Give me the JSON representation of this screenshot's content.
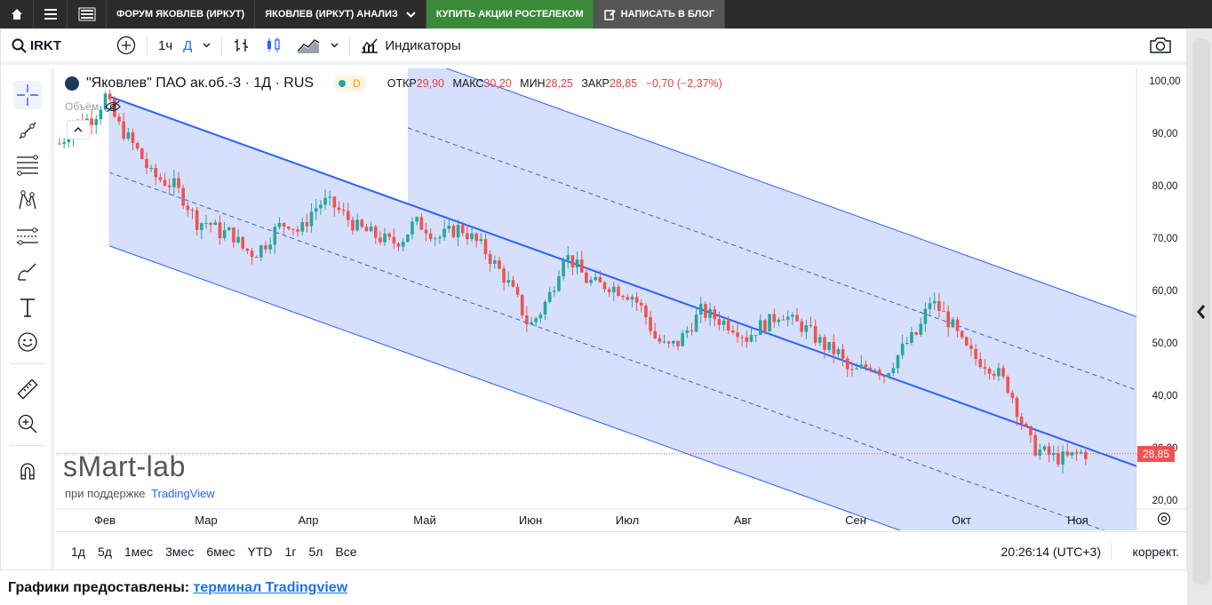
{
  "topnav": {
    "items": [
      {
        "label": "ФОРУМ ЯКОВЛЕВ (ИРКУТ)"
      },
      {
        "label": "ЯКОВЛЕВ (ИРКУТ) АНАЛИЗ"
      },
      {
        "label": "КУПИТЬ АКЦИИ РОСТЕЛЕКОМ"
      },
      {
        "label": "НАПИСАТЬ В БЛОГ"
      }
    ],
    "colors": {
      "bar": "#2b2b2b",
      "green": "#3a8a3a",
      "grey": "#555555"
    }
  },
  "toolbar": {
    "symbol": "IRKT",
    "interval": "1ч",
    "interval_alt": "Д",
    "indicators_label": "Индикаторы"
  },
  "legend": {
    "title": "\"Яковлев\" ПАО ак.об.-3 · 1Д · RUS",
    "badge": "D",
    "volume_label": "Объём",
    "open_label": "ОТКР",
    "open": "29,90",
    "high_label": "МАКС",
    "high": "30,20",
    "low_label": "МИН",
    "low": "28,25",
    "close_label": "ЗАКР",
    "close": "28,85",
    "change": "−0,70 (−2,37%)"
  },
  "watermark": {
    "logo": "sMart-lab",
    "sub_prefix": "при поддержке",
    "sub_brand": "TradingView"
  },
  "chart_data": {
    "type": "candlestick",
    "x_ticks": [
      "Фев",
      "Мар",
      "Апр",
      "Май",
      "Июн",
      "Июл",
      "Авг",
      "Сен",
      "Окт",
      "Ноя"
    ],
    "y_ticks": [
      "100,00",
      "90,00",
      "80,00",
      "70,00",
      "60,00",
      "50,00",
      "40,00",
      "30,00",
      "20,00"
    ],
    "ylim": [
      20,
      102
    ],
    "last_price": "28,85",
    "colors": {
      "up": "#26a69a",
      "down": "#ef5350",
      "channel": "#2962ff",
      "fill": "#d1dcfb"
    },
    "channel": {
      "start_date": "Фев",
      "upper_start": 97,
      "mid_start": 82.5,
      "lower_start": 68.5,
      "upper_end": 26.5
    },
    "path": [
      [
        0,
        88
      ],
      [
        6,
        92
      ],
      [
        12,
        93
      ],
      [
        16,
        97
      ],
      [
        20,
        92
      ],
      [
        24,
        89
      ],
      [
        28,
        86
      ],
      [
        32,
        82
      ],
      [
        36,
        81
      ],
      [
        40,
        80
      ],
      [
        44,
        77
      ],
      [
        48,
        73
      ],
      [
        52,
        73
      ],
      [
        56,
        71
      ],
      [
        60,
        71
      ],
      [
        64,
        68
      ],
      [
        68,
        67
      ],
      [
        72,
        69
      ],
      [
        76,
        72
      ],
      [
        80,
        73
      ],
      [
        84,
        71
      ],
      [
        88,
        75
      ],
      [
        92,
        77
      ],
      [
        96,
        76
      ],
      [
        100,
        74
      ],
      [
        104,
        72
      ],
      [
        108,
        71
      ],
      [
        112,
        70
      ],
      [
        116,
        69
      ],
      [
        120,
        70
      ],
      [
        124,
        73
      ],
      [
        128,
        72
      ],
      [
        132,
        70
      ],
      [
        136,
        71
      ],
      [
        140,
        72
      ],
      [
        144,
        70
      ],
      [
        148,
        68
      ],
      [
        152,
        65
      ],
      [
        156,
        62
      ],
      [
        160,
        58
      ],
      [
        164,
        53
      ],
      [
        168,
        56
      ],
      [
        172,
        60
      ],
      [
        176,
        67
      ],
      [
        180,
        65
      ],
      [
        184,
        62
      ],
      [
        188,
        61
      ],
      [
        192,
        61
      ],
      [
        196,
        60
      ],
      [
        200,
        59
      ],
      [
        204,
        56
      ],
      [
        208,
        51
      ],
      [
        212,
        49
      ],
      [
        216,
        50
      ],
      [
        220,
        53
      ],
      [
        224,
        56
      ],
      [
        228,
        55
      ],
      [
        232,
        54
      ],
      [
        236,
        53
      ],
      [
        240,
        51
      ],
      [
        244,
        53
      ],
      [
        248,
        54
      ],
      [
        252,
        56
      ],
      [
        256,
        54
      ],
      [
        260,
        53
      ],
      [
        264,
        51
      ],
      [
        268,
        49
      ],
      [
        272,
        48
      ],
      [
        276,
        44
      ],
      [
        280,
        45
      ],
      [
        284,
        46
      ],
      [
        288,
        44
      ],
      [
        292,
        47
      ],
      [
        296,
        50
      ],
      [
        300,
        52
      ],
      [
        304,
        58
      ],
      [
        308,
        56
      ],
      [
        312,
        53
      ],
      [
        316,
        49
      ],
      [
        320,
        47
      ],
      [
        324,
        46
      ],
      [
        328,
        44
      ],
      [
        332,
        41
      ],
      [
        336,
        35
      ],
      [
        340,
        30
      ],
      [
        344,
        29
      ],
      [
        348,
        28
      ],
      [
        352,
        28
      ],
      [
        356,
        29
      ],
      [
        360,
        28.85
      ]
    ]
  },
  "bottombar": {
    "ranges": [
      "1д",
      "5д",
      "1мес",
      "3мес",
      "6мес",
      "YTD",
      "1г",
      "5л",
      "Все"
    ],
    "time": "20:26:14 (UTC+3)",
    "adjust": "коррект."
  },
  "footer": {
    "prefix": "Графики предоставлены:",
    "link": "терминал Tradingview"
  }
}
